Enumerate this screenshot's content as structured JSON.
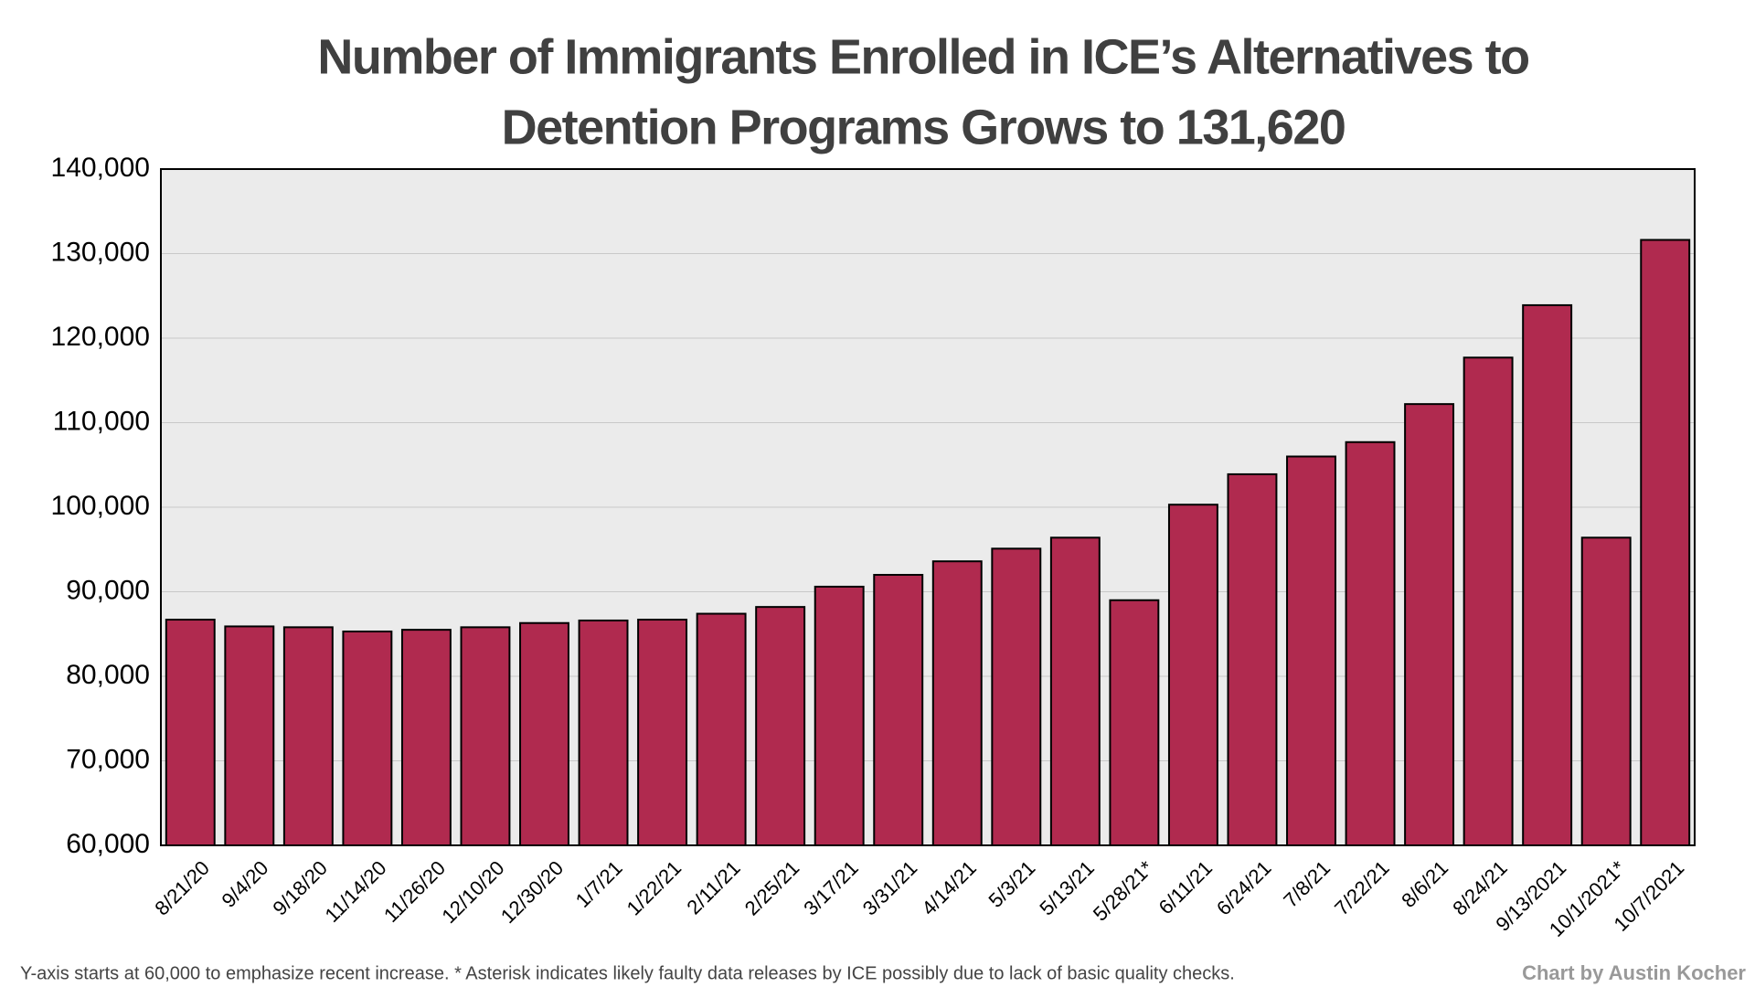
{
  "chart_data": {
    "type": "bar",
    "title": [
      "Number of Immigrants Enrolled in ICE’s Alternatives to",
      "Detention Programs Grows to 131,620"
    ],
    "categories": [
      "8/21/20",
      "9/4/20",
      "9/18/20",
      "11/14/20",
      "11/26/20",
      "12/10/20",
      "12/30/20",
      "1/7/21",
      "1/22/21",
      "2/11/21",
      "2/25/21",
      "3/17/21",
      "3/31/21",
      "4/14/21",
      "5/3/21",
      "5/13/21",
      "5/28/21*",
      "6/11/21",
      "6/24/21",
      "7/8/21",
      "7/22/21",
      "8/6/21",
      "8/24/21",
      "9/13/2021",
      "10/1/2021*",
      "10/7/2021"
    ],
    "values": [
      86700,
      85900,
      85800,
      85300,
      85500,
      85800,
      86300,
      86600,
      86700,
      87400,
      88200,
      90600,
      92000,
      93600,
      95100,
      96400,
      89000,
      100300,
      103900,
      106000,
      107700,
      112200,
      117700,
      123900,
      96400,
      131620
    ],
    "color": "#b02a4f",
    "ylim": [
      60000,
      140000
    ],
    "yticks": [
      {
        "value": 60000,
        "label": "60,000"
      },
      {
        "value": 70000,
        "label": "70,000"
      },
      {
        "value": 80000,
        "label": "80,000"
      },
      {
        "value": 90000,
        "label": "90,000"
      },
      {
        "value": 100000,
        "label": "100,000"
      },
      {
        "value": 110000,
        "label": "110,000"
      },
      {
        "value": 120000,
        "label": "120,000"
      },
      {
        "value": 130000,
        "label": "130,000"
      },
      {
        "value": 140000,
        "label": "140,000"
      }
    ],
    "grid": true,
    "note": "Y-axis starts at 60,000 to emphasize recent increase. * Asterisk indicates likely faulty data releases by ICE possibly due to lack of basic quality checks.",
    "credit": "Chart by Austin Kocher"
  }
}
